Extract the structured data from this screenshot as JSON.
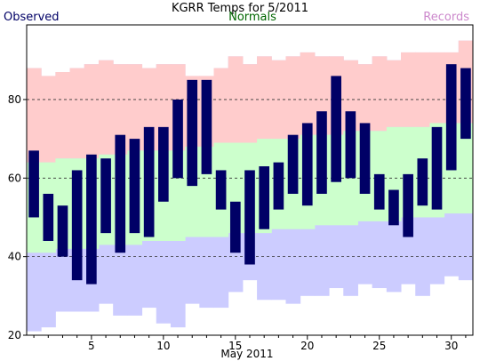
{
  "chart_data": {
    "type": "bar",
    "title": "KGRR Temps for 5/2011",
    "xlabel": "May 2011",
    "ylabel": "",
    "legend": [
      {
        "label": "Observed",
        "color": "#000066",
        "placement": "top-left"
      },
      {
        "label": "Normals",
        "color": "#006600",
        "placement": "top-center"
      },
      {
        "label": "Records",
        "color": "#cc88cc",
        "placement": "top-right"
      }
    ],
    "xlim": [
      0.5,
      31.5
    ],
    "ylim": [
      20,
      99
    ],
    "xticks": [
      5,
      10,
      15,
      20,
      25,
      30
    ],
    "yticks": [
      20,
      40,
      60,
      80
    ],
    "gridlines_y": [
      40,
      60,
      80
    ],
    "days": [
      1,
      2,
      3,
      4,
      5,
      6,
      7,
      8,
      9,
      10,
      11,
      12,
      13,
      14,
      15,
      16,
      17,
      18,
      19,
      20,
      21,
      22,
      23,
      24,
      25,
      26,
      27,
      28,
      29,
      30,
      31
    ],
    "record_high": [
      88,
      86,
      87,
      88,
      89,
      90,
      89,
      89,
      88,
      89,
      89,
      86,
      86,
      88,
      91,
      89,
      91,
      90,
      91,
      92,
      91,
      91,
      90,
      89,
      91,
      90,
      92,
      92,
      92,
      92,
      95
    ],
    "record_low": [
      21,
      22,
      26,
      26,
      26,
      28,
      25,
      25,
      27,
      23,
      22,
      28,
      27,
      27,
      31,
      34,
      29,
      29,
      28,
      30,
      30,
      32,
      30,
      33,
      32,
      31,
      33,
      30,
      33,
      35,
      34
    ],
    "normal_high": [
      64,
      64,
      65,
      65,
      65,
      66,
      66,
      67,
      67,
      67,
      67,
      68,
      68,
      69,
      69,
      69,
      70,
      70,
      70,
      71,
      71,
      71,
      72,
      72,
      72,
      73,
      73,
      73,
      74,
      74,
      74
    ],
    "normal_low": [
      41,
      41,
      42,
      42,
      42,
      43,
      43,
      43,
      44,
      44,
      44,
      45,
      45,
      45,
      46,
      46,
      46,
      47,
      47,
      47,
      48,
      48,
      48,
      49,
      49,
      49,
      50,
      50,
      50,
      51,
      51
    ],
    "observed_high": [
      67,
      56,
      53,
      62,
      66,
      65,
      71,
      70,
      73,
      73,
      80,
      85,
      85,
      62,
      54,
      62,
      63,
      64,
      71,
      74,
      77,
      86,
      77,
      74,
      61,
      57,
      61,
      65,
      73,
      89,
      88
    ],
    "observed_low": [
      50,
      44,
      40,
      34,
      33,
      46,
      41,
      46,
      45,
      54,
      60,
      58,
      61,
      52,
      41,
      38,
      47,
      52,
      56,
      53,
      56,
      59,
      60,
      56,
      52,
      48,
      45,
      53,
      52,
      62,
      70
    ],
    "colors": {
      "records": "#ccccff",
      "record_high_band": "#ffcccc",
      "normals": "#ccffcc",
      "observed": "#000066",
      "grid": "#333333",
      "axis": "#000000"
    }
  }
}
